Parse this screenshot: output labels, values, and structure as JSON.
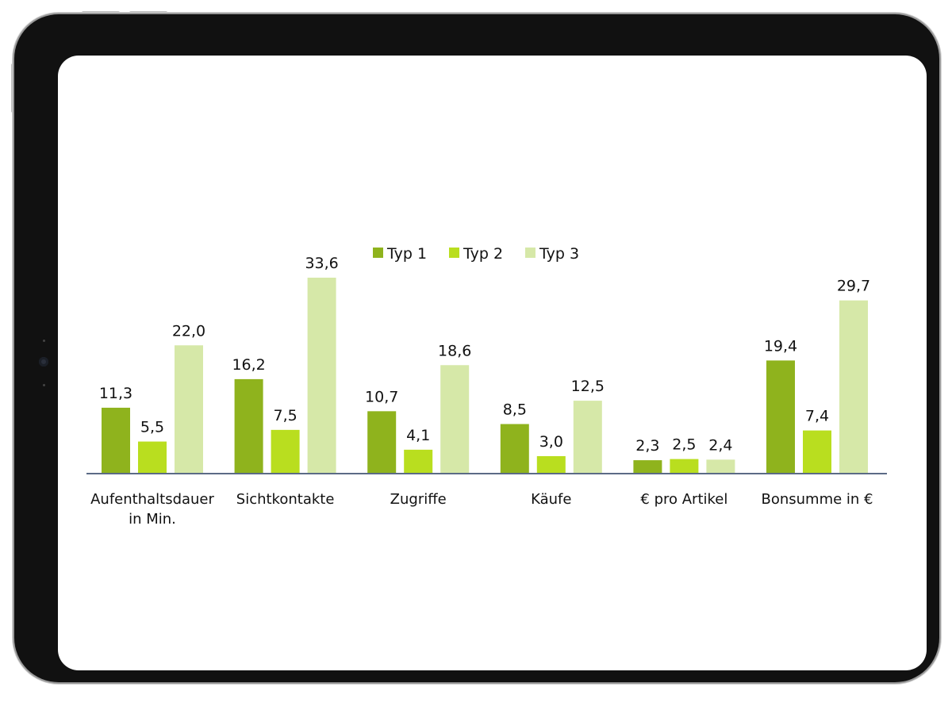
{
  "colors": {
    "typ1": "#8fb31d",
    "typ2": "#b9de1f",
    "typ3": "#d6e8a8",
    "axis": "#5b6b86"
  },
  "chart_data": {
    "type": "bar",
    "title": "",
    "xlabel": "",
    "ylabel": "",
    "ylim": [
      0,
      33.6
    ],
    "grid": false,
    "legend_position": "top",
    "categories": [
      [
        "Aufenthaltsdauer",
        "in Min."
      ],
      [
        "Sichtkontakte"
      ],
      [
        "Zugriffe"
      ],
      [
        "Käufe"
      ],
      [
        "€ pro Artikel"
      ],
      [
        "Bonsumme in €"
      ]
    ],
    "series": [
      {
        "name": "Typ 1",
        "values": [
          11.3,
          16.2,
          10.7,
          8.5,
          2.3,
          19.4
        ],
        "labels": [
          "11,3",
          "16,2",
          "10,7",
          "8,5",
          "2,3",
          "19,4"
        ]
      },
      {
        "name": "Typ 2",
        "values": [
          5.5,
          7.5,
          4.1,
          3.0,
          2.5,
          7.4
        ],
        "labels": [
          "5,5",
          "7,5",
          "4,1",
          "3,0",
          "2,5",
          "7,4"
        ]
      },
      {
        "name": "Typ 3",
        "values": [
          22.0,
          33.6,
          18.6,
          12.5,
          2.4,
          29.7
        ],
        "labels": [
          "22,0",
          "33,6",
          "18,6",
          "12,5",
          "2,4",
          "29,7"
        ]
      }
    ]
  }
}
